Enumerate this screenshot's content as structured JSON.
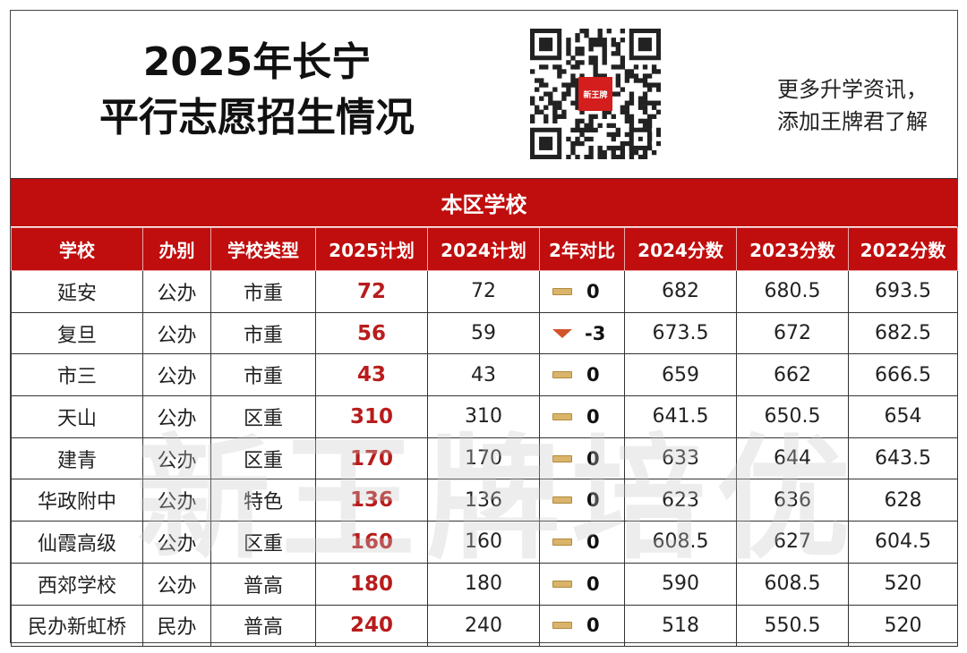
{
  "header": {
    "title_line1": "2025年长宁",
    "title_line2": "平行志愿招生情况",
    "promo_line1": "更多升学资讯，",
    "promo_line2": "添加王牌君了解",
    "qr_badge": "新王牌"
  },
  "banner": "本区学校",
  "table": {
    "columns": [
      "学校",
      "办别",
      "学校类型",
      "2025计划",
      "2024计划",
      "2年对比",
      "2024分数",
      "2023分数",
      "2022分数"
    ],
    "rows": [
      {
        "school": "延安",
        "type": "公办",
        "category": "市重",
        "plan2025": "72",
        "plan2024": "72",
        "trend": "flat",
        "diff": "0",
        "s2024": "682",
        "s2023": "680.5",
        "s2022": "693.5"
      },
      {
        "school": "复旦",
        "type": "公办",
        "category": "市重",
        "plan2025": "56",
        "plan2024": "59",
        "trend": "down",
        "diff": "-3",
        "s2024": "673.5",
        "s2023": "672",
        "s2022": "682.5"
      },
      {
        "school": "市三",
        "type": "公办",
        "category": "市重",
        "plan2025": "43",
        "plan2024": "43",
        "trend": "flat",
        "diff": "0",
        "s2024": "659",
        "s2023": "662",
        "s2022": "666.5"
      },
      {
        "school": "天山",
        "type": "公办",
        "category": "区重",
        "plan2025": "310",
        "plan2024": "310",
        "trend": "flat",
        "diff": "0",
        "s2024": "641.5",
        "s2023": "650.5",
        "s2022": "654"
      },
      {
        "school": "建青",
        "type": "公办",
        "category": "区重",
        "plan2025": "170",
        "plan2024": "170",
        "trend": "flat",
        "diff": "0",
        "s2024": "633",
        "s2023": "644",
        "s2022": "643.5"
      },
      {
        "school": "华政附中",
        "type": "公办",
        "category": "特色",
        "plan2025": "136",
        "plan2024": "136",
        "trend": "flat",
        "diff": "0",
        "s2024": "623",
        "s2023": "636",
        "s2022": "628"
      },
      {
        "school": "仙霞高级",
        "type": "公办",
        "category": "区重",
        "plan2025": "160",
        "plan2024": "160",
        "trend": "flat",
        "diff": "0",
        "s2024": "608.5",
        "s2023": "627",
        "s2022": "604.5"
      },
      {
        "school": "西郊学校",
        "type": "公办",
        "category": "普高",
        "plan2025": "180",
        "plan2024": "180",
        "trend": "flat",
        "diff": "0",
        "s2024": "590",
        "s2023": "608.5",
        "s2022": "520"
      },
      {
        "school": "民办新虹桥",
        "type": "民办",
        "category": "普高",
        "plan2025": "240",
        "plan2024": "240",
        "trend": "flat",
        "diff": "0",
        "s2024": "518",
        "s2023": "550.5",
        "s2022": "520"
      }
    ]
  },
  "watermark": "新王牌培优",
  "colors": {
    "accent": "#c00d0d",
    "plan_text": "#b81c1c",
    "down_arrow": "#d2542a",
    "flat_bar": "#d9b46a"
  }
}
